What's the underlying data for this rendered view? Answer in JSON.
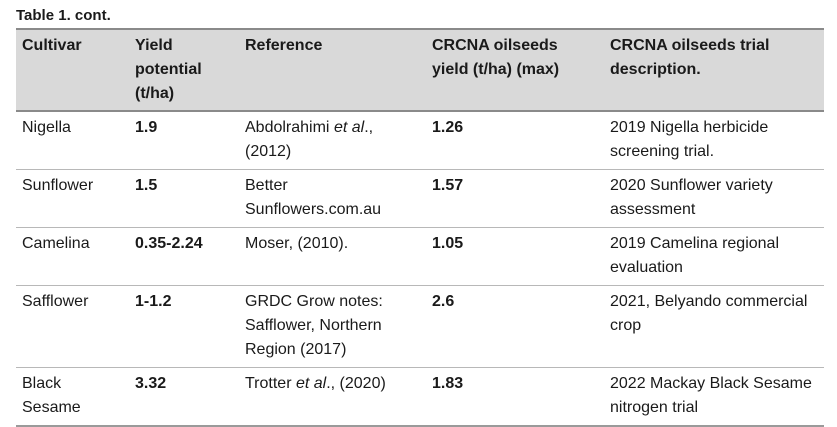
{
  "caption": "Table 1. cont.",
  "headers": {
    "cultivar": "Cultivar",
    "yield_potential": "Yield potential (t/ha)",
    "reference": "Reference",
    "crcna_yield": "CRCNA oilseeds yield (t/ha) (max)",
    "crcna_trial": "CRCNA oilseeds trial description."
  },
  "rows": [
    {
      "cultivar": "Nigella",
      "yield_potential": "1.9",
      "reference": {
        "pre": "Abdolrahimi ",
        "em": "et al",
        "post": "., (2012)"
      },
      "crcna_yield": "1.26",
      "crcna_trial": "2019 Nigella herbicide screening trial."
    },
    {
      "cultivar": "Sunflower",
      "yield_potential": "1.5",
      "reference": {
        "pre": "Better Sunflowers.com.au",
        "em": "",
        "post": ""
      },
      "crcna_yield": "1.57",
      "crcna_trial": "2020 Sunflower variety assessment"
    },
    {
      "cultivar": "Camelina",
      "yield_potential": "0.35-2.24",
      "reference": {
        "pre": "Moser, (2010).",
        "em": "",
        "post": ""
      },
      "crcna_yield": "1.05",
      "crcna_trial": "2019 Camelina regional evaluation"
    },
    {
      "cultivar": "Safflower",
      "yield_potential": "1-1.2",
      "reference": {
        "pre": "GRDC Grow notes: Safflower, Northern Region (2017)",
        "em": "",
        "post": ""
      },
      "crcna_yield": "2.6",
      "crcna_trial": "2021, Belyando commercial crop"
    },
    {
      "cultivar": "Black Sesame",
      "yield_potential": "3.32",
      "reference": {
        "pre": "Trotter ",
        "em": "et al",
        "post": "., (2020)"
      },
      "crcna_yield": "1.83",
      "crcna_trial": "2022 Mackay Black Sesame nitrogen trial"
    }
  ]
}
